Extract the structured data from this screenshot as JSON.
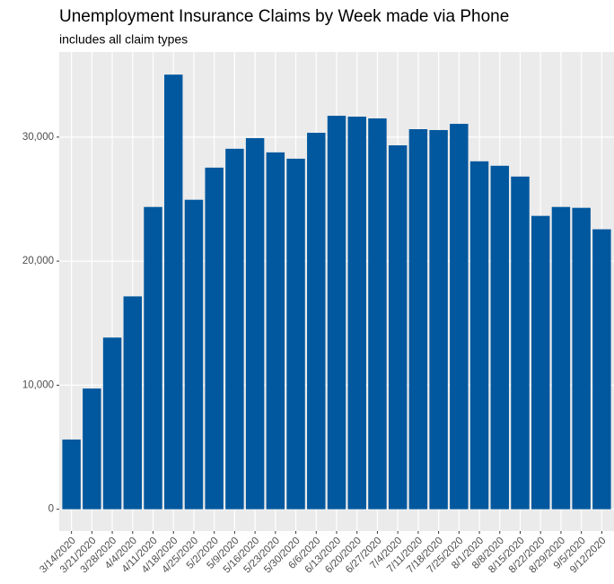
{
  "chart_data": {
    "type": "bar",
    "title": "Unemployment Insurance Claims by Week made via Phone",
    "subtitle": "includes all claim types",
    "categories": [
      "3/14/2020",
      "3/21/2020",
      "3/28/2020",
      "4/4/2020",
      "4/11/2020",
      "4/18/2020",
      "4/25/2020",
      "5/2/2020",
      "5/9/2020",
      "5/16/2020",
      "5/23/2020",
      "5/30/2020",
      "6/6/2020",
      "6/13/2020",
      "6/20/2020",
      "6/27/2020",
      "7/4/2020",
      "7/11/2020",
      "7/18/2020",
      "7/25/2020",
      "8/1/2020",
      "8/8/2020",
      "8/15/2020",
      "8/22/2020",
      "8/29/2020",
      "9/5/2020",
      "9/12/2020"
    ],
    "values": [
      5620,
      9730,
      13840,
      17160,
      24370,
      35040,
      24950,
      27540,
      29060,
      29920,
      28770,
      28260,
      30350,
      31720,
      31650,
      31510,
      29340,
      30640,
      30570,
      31070,
      28050,
      27690,
      26820,
      23650,
      24370,
      24300,
      22570
    ],
    "color": "#02589e",
    "ylim": [
      -1760,
      36860
    ],
    "yticks": [
      0,
      {
        "value": 10000,
        "label": "10,000"
      },
      {
        "value": 20000,
        "label": "20,000"
      },
      {
        "value": 30000,
        "label": "30,000"
      }
    ],
    "grid": true
  }
}
